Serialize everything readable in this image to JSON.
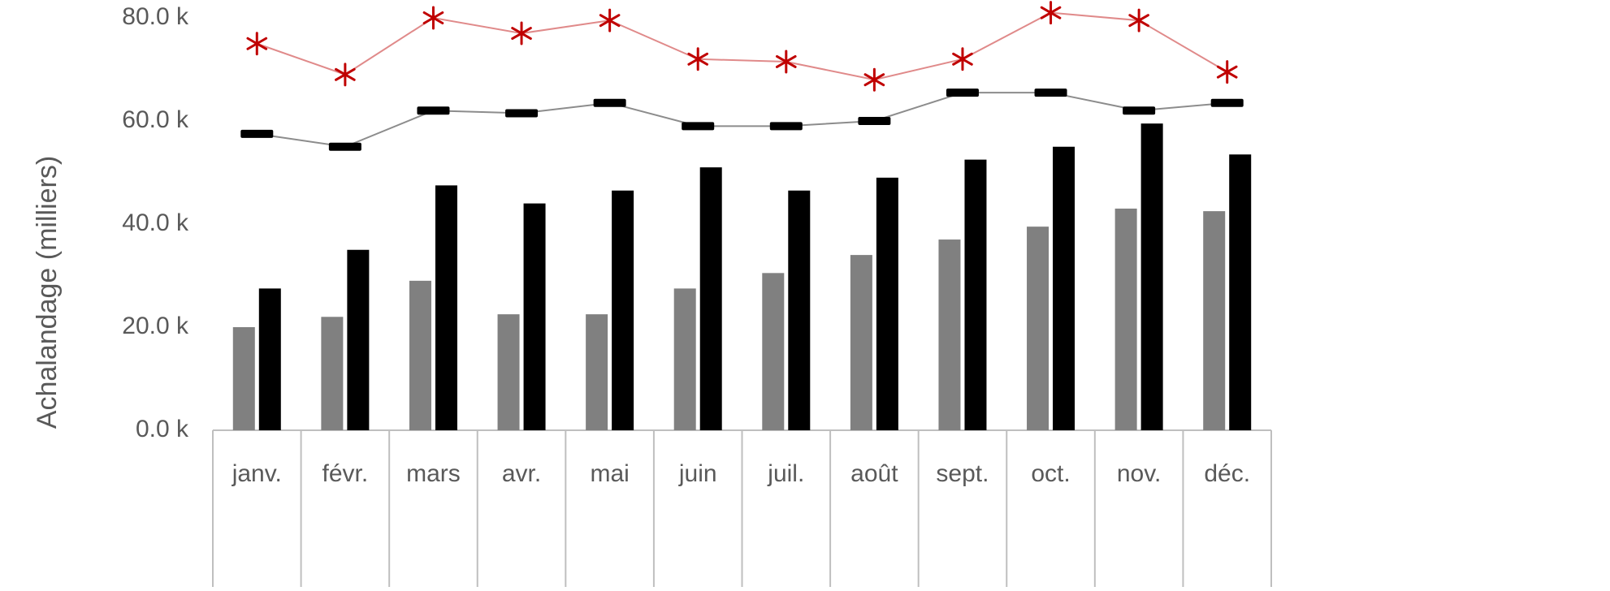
{
  "chart_data": {
    "type": "bar",
    "title": "",
    "xlabel": "",
    "ylabel": "Achalandage (milliers)",
    "ylim": [
      0,
      80000
    ],
    "yticks": [
      {
        "value": 0,
        "label": "0.0 k"
      },
      {
        "value": 20000,
        "label": "20.0 k"
      },
      {
        "value": 40000,
        "label": "40.0 k"
      },
      {
        "value": 60000,
        "label": "60.0 k"
      },
      {
        "value": 80000,
        "label": "80.0 k"
      }
    ],
    "grid": false,
    "legend": "none",
    "categories": [
      "janv.",
      "févr.",
      "mars",
      "avr.",
      "mai",
      "juin",
      "juil.",
      "août",
      "sept.",
      "oct.",
      "nov.",
      "déc."
    ],
    "series": [
      {
        "kind": "bar",
        "color": "#808080",
        "values": [
          20000,
          22000,
          29000,
          22500,
          22500,
          27500,
          30500,
          34000,
          37000,
          39500,
          43000,
          42500
        ]
      },
      {
        "kind": "bar",
        "color": "#000000",
        "values": [
          27500,
          35000,
          47500,
          44000,
          46500,
          51000,
          46500,
          49000,
          52500,
          55000,
          59500,
          53500
        ]
      },
      {
        "kind": "line",
        "marker": "dash",
        "color": "#000000",
        "line_color": "#8c8c8c",
        "values": [
          57500,
          55000,
          62000,
          61500,
          63500,
          59000,
          59000,
          60000,
          65500,
          65500,
          62000,
          63500
        ]
      },
      {
        "kind": "line",
        "marker": "star",
        "color": "#c00000",
        "line_color": "#e08a8a",
        "values": [
          75000,
          69000,
          80000,
          77000,
          79500,
          72000,
          71500,
          68000,
          72000,
          81000,
          79500,
          69500
        ]
      }
    ]
  }
}
